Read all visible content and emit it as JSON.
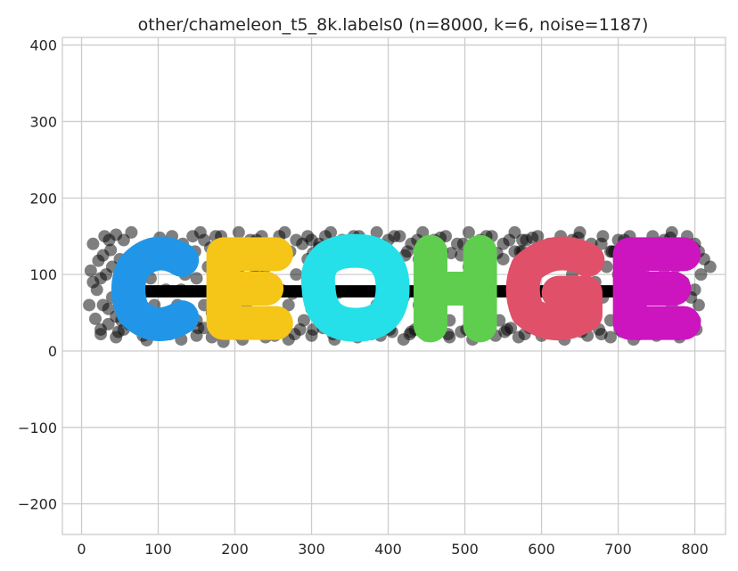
{
  "chart_data": {
    "type": "scatter",
    "title": "other/chameleon_t5_8k.labels0 (n=8000, k=6, noise=1187)",
    "xlabel": "",
    "ylabel": "",
    "xlim": [
      -25,
      840
    ],
    "ylim": [
      -240,
      410
    ],
    "x_ticks": [
      0,
      100,
      200,
      300,
      400,
      500,
      600,
      700,
      800
    ],
    "y_ticks": [
      -200,
      -100,
      0,
      100,
      200,
      300,
      400
    ],
    "x_tick_labels": [
      "0",
      "100",
      "200",
      "300",
      "400",
      "500",
      "600",
      "700",
      "800"
    ],
    "y_tick_labels": [
      "−200",
      "−100",
      "0",
      "100",
      "200",
      "300",
      "400"
    ],
    "grid": true,
    "legend": "none",
    "noise": {
      "name": "noise",
      "color": "#000000",
      "opacity": 0.5,
      "count": 1187,
      "points": [
        [
          15,
          140
        ],
        [
          22,
          118
        ],
        [
          30,
          150
        ],
        [
          38,
          132
        ],
        [
          45,
          152
        ],
        [
          55,
          145
        ],
        [
          65,
          155
        ],
        [
          18,
          42
        ],
        [
          25,
          22
        ],
        [
          35,
          35
        ],
        [
          45,
          18
        ],
        [
          55,
          28
        ],
        [
          20,
          80
        ],
        [
          28,
          60
        ],
        [
          32,
          100
        ],
        [
          12,
          105
        ],
        [
          40,
          70
        ],
        [
          60,
          50
        ],
        [
          70,
          40
        ],
        [
          80,
          20
        ],
        [
          85,
          14
        ],
        [
          100,
          30
        ],
        [
          115,
          22
        ],
        [
          130,
          15
        ],
        [
          140,
          35
        ],
        [
          150,
          20
        ],
        [
          160,
          30
        ],
        [
          170,
          18
        ],
        [
          185,
          12
        ],
        [
          195,
          25
        ],
        [
          210,
          15
        ],
        [
          225,
          30
        ],
        [
          240,
          18
        ],
        [
          255,
          25
        ],
        [
          270,
          15
        ],
        [
          285,
          28
        ],
        [
          300,
          20
        ],
        [
          315,
          30
        ],
        [
          330,
          15
        ],
        [
          345,
          25
        ],
        [
          360,
          18
        ],
        [
          375,
          30
        ],
        [
          390,
          20
        ],
        [
          405,
          25
        ],
        [
          420,
          15
        ],
        [
          435,
          28
        ],
        [
          450,
          20
        ],
        [
          465,
          30
        ],
        [
          480,
          18
        ],
        [
          495,
          25
        ],
        [
          510,
          15
        ],
        [
          525,
          30
        ],
        [
          540,
          20
        ],
        [
          555,
          28
        ],
        [
          570,
          18
        ],
        [
          585,
          30
        ],
        [
          600,
          20
        ],
        [
          615,
          25
        ],
        [
          630,
          15
        ],
        [
          645,
          30
        ],
        [
          660,
          20
        ],
        [
          675,
          28
        ],
        [
          690,
          18
        ],
        [
          705,
          25
        ],
        [
          720,
          15
        ],
        [
          735,
          30
        ],
        [
          750,
          20
        ],
        [
          765,
          25
        ],
        [
          780,
          18
        ],
        [
          795,
          28
        ],
        [
          800,
          40
        ],
        [
          805,
          60
        ],
        [
          800,
          80
        ],
        [
          808,
          100
        ],
        [
          795,
          120
        ],
        [
          800,
          140
        ],
        [
          790,
          150
        ],
        [
          780,
          130
        ],
        [
          770,
          155
        ],
        [
          760,
          145
        ],
        [
          745,
          150
        ],
        [
          730,
          140
        ],
        [
          715,
          150
        ],
        [
          700,
          145
        ],
        [
          690,
          130
        ],
        [
          680,
          150
        ],
        [
          665,
          140
        ],
        [
          650,
          155
        ],
        [
          640,
          145
        ],
        [
          625,
          150
        ],
        [
          610,
          140
        ],
        [
          595,
          150
        ],
        [
          580,
          145
        ],
        [
          565,
          155
        ],
        [
          550,
          140
        ],
        [
          535,
          150
        ],
        [
          520,
          145
        ],
        [
          505,
          155
        ],
        [
          490,
          140
        ],
        [
          475,
          150
        ],
        [
          460,
          145
        ],
        [
          445,
          155
        ],
        [
          430,
          140
        ],
        [
          415,
          150
        ],
        [
          400,
          145
        ],
        [
          385,
          155
        ],
        [
          370,
          140
        ],
        [
          355,
          150
        ],
        [
          340,
          145
        ],
        [
          325,
          155
        ],
        [
          310,
          140
        ],
        [
          295,
          150
        ],
        [
          280,
          145
        ],
        [
          265,
          155
        ],
        [
          250,
          140
        ],
        [
          235,
          150
        ],
        [
          220,
          145
        ],
        [
          205,
          155
        ],
        [
          190,
          140
        ],
        [
          175,
          150
        ],
        [
          160,
          145
        ],
        [
          148,
          130
        ],
        [
          140,
          118
        ],
        [
          135,
          100
        ],
        [
          150,
          95
        ],
        [
          165,
          110
        ],
        [
          180,
          75
        ],
        [
          170,
          50
        ],
        [
          160,
          60
        ],
        [
          150,
          40
        ],
        [
          140,
          55
        ],
        [
          200,
          75
        ],
        [
          215,
          80
        ],
        [
          230,
          72
        ],
        [
          245,
          78
        ],
        [
          260,
          80
        ],
        [
          275,
          75
        ],
        [
          290,
          78
        ],
        [
          305,
          72
        ],
        [
          320,
          80
        ],
        [
          335,
          76
        ],
        [
          280,
          100
        ],
        [
          295,
          120
        ],
        [
          300,
          55
        ],
        [
          290,
          40
        ],
        [
          325,
          110
        ],
        [
          320,
          40
        ],
        [
          410,
          45
        ],
        [
          420,
          70
        ],
        [
          415,
          110
        ],
        [
          425,
          130
        ],
        [
          440,
          120
        ],
        [
          445,
          40
        ],
        [
          450,
          80
        ],
        [
          545,
          40
        ],
        [
          550,
          120
        ],
        [
          560,
          80
        ],
        [
          565,
          130
        ],
        [
          575,
          55
        ],
        [
          690,
          40
        ],
        [
          680,
          70
        ],
        [
          685,
          110
        ],
        [
          695,
          130
        ],
        [
          670,
          90
        ],
        [
          795,
          70
        ],
        [
          785,
          90
        ],
        [
          775,
          110
        ],
        [
          640,
          100
        ],
        [
          625,
          80
        ],
        [
          615,
          60
        ],
        [
          600,
          110
        ],
        [
          470,
          80
        ],
        [
          490,
          75
        ],
        [
          505,
          80
        ],
        [
          520,
          72
        ],
        [
          535,
          78
        ],
        [
          250,
          130
        ],
        [
          240,
          110
        ],
        [
          230,
          100
        ],
        [
          270,
          60
        ],
        [
          265,
          45
        ],
        [
          110,
          80
        ],
        [
          95,
          60
        ],
        [
          85,
          110
        ],
        [
          75,
          125
        ],
        [
          60,
          90
        ],
        [
          50,
          80
        ],
        [
          65,
          70
        ],
        [
          90,
          95
        ],
        [
          100,
          120
        ],
        [
          120,
          130
        ],
        [
          125,
          60
        ],
        [
          115,
          45
        ],
        [
          105,
          35
        ],
        [
          130,
          80
        ],
        [
          40,
          110
        ],
        [
          50,
          120
        ],
        [
          25,
          95
        ],
        [
          35,
          55
        ],
        [
          45,
          45
        ],
        [
          75,
          28
        ],
        [
          95,
          45
        ],
        [
          205,
          40
        ],
        [
          215,
          55
        ],
        [
          225,
          110
        ],
        [
          355,
          35
        ],
        [
          345,
          125
        ],
        [
          370,
          130
        ],
        [
          385,
          60
        ],
        [
          395,
          45
        ],
        [
          465,
          45
        ],
        [
          480,
          40
        ],
        [
          495,
          125
        ],
        [
          505,
          110
        ],
        [
          515,
          40
        ],
        [
          585,
          120
        ],
        [
          590,
          40
        ],
        [
          655,
          45
        ],
        [
          665,
          120
        ],
        [
          710,
          35
        ],
        [
          720,
          55
        ],
        [
          735,
          110
        ],
        [
          750,
          130
        ],
        [
          760,
          100
        ],
        [
          770,
          60
        ],
        [
          780,
          40
        ],
        [
          790,
          25
        ],
        [
          730,
          25
        ],
        [
          745,
          40
        ],
        [
          615,
          35
        ],
        [
          630,
          125
        ],
        [
          470,
          130
        ],
        [
          460,
          30
        ],
        [
          380,
          140
        ],
        [
          365,
          145
        ],
        [
          260,
          30
        ],
        [
          240,
          35
        ],
        [
          180,
          130
        ],
        [
          195,
          120
        ],
        [
          205,
          100
        ],
        [
          310,
          135
        ],
        [
          300,
          145
        ],
        [
          430,
          25
        ],
        [
          440,
          60
        ],
        [
          560,
          30
        ],
        [
          575,
          130
        ],
        [
          575,
          145
        ],
        [
          605,
          35
        ],
        [
          625,
          30
        ],
        [
          645,
          125
        ],
        [
          655,
          60
        ],
        [
          700,
          100
        ],
        [
          705,
          75
        ],
        [
          715,
          120
        ],
        [
          820,
          110
        ],
        [
          805,
          130
        ],
        [
          10,
          60
        ],
        [
          15,
          90
        ],
        [
          28,
          125
        ],
        [
          36,
          145
        ],
        [
          48,
          25
        ],
        [
          62,
          35
        ],
        [
          88,
          130
        ],
        [
          102,
          148
        ],
        [
          118,
          150
        ],
        [
          132,
          140
        ],
        [
          145,
          150
        ],
        [
          155,
          155
        ],
        [
          168,
          135
        ],
        [
          182,
          150
        ],
        [
          198,
          140
        ],
        [
          212,
          130
        ],
        [
          228,
          145
        ],
        [
          242,
          125
        ],
        [
          258,
          150
        ],
        [
          272,
          130
        ],
        [
          288,
          140
        ],
        [
          302,
          128
        ],
        [
          318,
          150
        ],
        [
          332,
          140
        ],
        [
          348,
          130
        ],
        [
          362,
          150
        ],
        [
          378,
          125
        ],
        [
          392,
          138
        ],
        [
          408,
          150
        ],
        [
          422,
          125
        ],
        [
          438,
          145
        ],
        [
          452,
          130
        ],
        [
          468,
          148
        ],
        [
          482,
          128
        ],
        [
          498,
          140
        ],
        [
          512,
          130
        ],
        [
          528,
          150
        ],
        [
          542,
          128
        ],
        [
          558,
          145
        ],
        [
          572,
          130
        ],
        [
          588,
          148
        ],
        [
          602,
          125
        ],
        [
          618,
          140
        ],
        [
          632,
          130
        ],
        [
          648,
          148
        ],
        [
          662,
          128
        ],
        [
          678,
          140
        ],
        [
          692,
          130
        ],
        [
          708,
          145
        ],
        [
          722,
          128
        ],
        [
          738,
          140
        ],
        [
          752,
          130
        ],
        [
          768,
          148
        ],
        [
          782,
          128
        ],
        [
          798,
          135
        ],
        [
          812,
          120
        ],
        [
          25,
          28
        ],
        [
          52,
          40
        ],
        [
          78,
          35
        ],
        [
          105,
          22
        ],
        [
          128,
          28
        ],
        [
          152,
          30
        ],
        [
          178,
          25
        ],
        [
          202,
          22
        ],
        [
          228,
          25
        ],
        [
          252,
          20
        ],
        [
          278,
          22
        ],
        [
          302,
          28
        ],
        [
          328,
          22
        ],
        [
          352,
          25
        ],
        [
          378,
          22
        ],
        [
          402,
          28
        ],
        [
          428,
          22
        ],
        [
          452,
          25
        ],
        [
          478,
          22
        ],
        [
          502,
          28
        ],
        [
          528,
          22
        ],
        [
          552,
          25
        ],
        [
          578,
          22
        ],
        [
          602,
          28
        ],
        [
          628,
          22
        ],
        [
          652,
          25
        ],
        [
          678,
          22
        ],
        [
          702,
          28
        ],
        [
          728,
          22
        ],
        [
          752,
          25
        ],
        [
          778,
          22
        ],
        [
          802,
          28
        ]
      ]
    },
    "clusters": [
      {
        "letter": "C",
        "color": "#2196e8",
        "x_range": [
          55,
          135
        ],
        "y_range": [
          28,
          135
        ]
      },
      {
        "letter": "E",
        "color": "#f5c518",
        "x_range": [
          175,
          258
        ],
        "y_range": [
          28,
          135
        ]
      },
      {
        "letter": "O",
        "color": "#25e0e8",
        "x_range": [
          300,
          415
        ],
        "y_range": [
          25,
          140
        ]
      },
      {
        "letter": "H",
        "color": "#5fce4f",
        "x_range": [
          445,
          530
        ],
        "y_range": [
          28,
          135
        ]
      },
      {
        "letter": "G",
        "color": "#e05068",
        "x_range": [
          570,
          665
        ],
        "y_range": [
          28,
          135
        ]
      },
      {
        "letter": "E",
        "color": "#cc14bf",
        "x_range": [
          705,
          790
        ],
        "y_range": [
          28,
          135
        ]
      }
    ],
    "bridge": {
      "color": "#000000",
      "y_value": 78,
      "x_range": [
        50,
        790
      ]
    }
  }
}
